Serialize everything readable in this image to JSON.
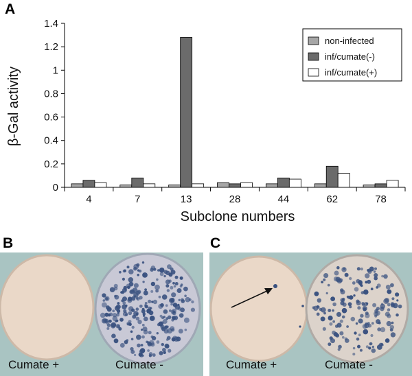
{
  "panels": {
    "a": "A",
    "b": "B",
    "c": "C"
  },
  "chart_data": {
    "type": "bar",
    "xlabel": "Subclone numbers",
    "ylabel": "β-Gal activity",
    "categories": [
      "4",
      "7",
      "13",
      "28",
      "44",
      "62",
      "78"
    ],
    "ylim": [
      0,
      1.4
    ],
    "yticks": [
      "0",
      "0.2",
      "0.4",
      "0.6",
      "0.8",
      "1",
      "1.2",
      "1.4"
    ],
    "grid": false,
    "legend_position": "top-right",
    "series": [
      {
        "name": "non-infected",
        "color": "#a6a6a6",
        "values": [
          0.03,
          0.02,
          0.02,
          0.04,
          0.03,
          0.03,
          0.02
        ]
      },
      {
        "name": "inf/cumate(-)",
        "color": "#6b6b6b",
        "values": [
          0.06,
          0.08,
          1.28,
          0.03,
          0.08,
          0.18,
          0.03
        ]
      },
      {
        "name": "inf/cumate(+)",
        "color": "#ffffff",
        "values": [
          0.04,
          0.03,
          0.03,
          0.04,
          0.07,
          0.12,
          0.06
        ]
      }
    ]
  },
  "photos": {
    "b_left_label": "Cumate +",
    "b_right_label": "Cumate -",
    "c_left_label": "Cumate +",
    "c_right_label": "Cumate -",
    "background_color": "#a9c4c2",
    "dish_color": "#ead8c8",
    "colony_color": "#39517f"
  }
}
